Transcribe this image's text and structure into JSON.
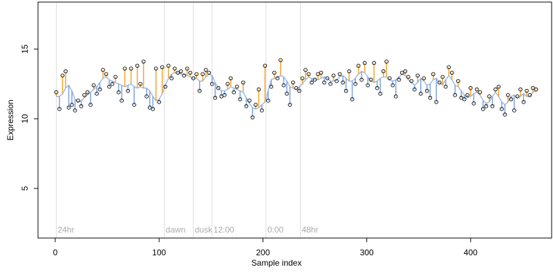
{
  "chart_data": {
    "type": "scatter",
    "xlabel": "Sample index",
    "ylabel": "Expression",
    "xlim": [
      -16.6,
      478
    ],
    "ylim": [
      1.44,
      18.37
    ],
    "xticks": [
      0,
      100,
      200,
      300,
      400
    ],
    "yticks": [
      5,
      10,
      15
    ],
    "above_color": "#f5a32a",
    "below_color": "#7aa3e0",
    "point_color": "#000000",
    "x": [
      1,
      4,
      7,
      10,
      13,
      16,
      19,
      22,
      25,
      28,
      31,
      34,
      37,
      40,
      43,
      46,
      49,
      52,
      55,
      58,
      61,
      64,
      67,
      70,
      73,
      76,
      79,
      82,
      85,
      88,
      91,
      94,
      97,
      100,
      103,
      106,
      109,
      112,
      115,
      118,
      121,
      124,
      127,
      130,
      133,
      136,
      139,
      142,
      145,
      148,
      151,
      154,
      157,
      160,
      163,
      166,
      169,
      172,
      175,
      178,
      181,
      184,
      187,
      190,
      193,
      196,
      199,
      202,
      205,
      208,
      211,
      214,
      217,
      220,
      223,
      226,
      229,
      232,
      235,
      238,
      241,
      244,
      247,
      250,
      253,
      256,
      259,
      262,
      265,
      268,
      271,
      274,
      277,
      280,
      283,
      286,
      289,
      292,
      295,
      298,
      301,
      304,
      307,
      310,
      313,
      316,
      319,
      322,
      325,
      328,
      331,
      334,
      337,
      340,
      343,
      346,
      349,
      352,
      355,
      358,
      361,
      364,
      367,
      370,
      373,
      376,
      379,
      382,
      385,
      388,
      391,
      394,
      397,
      400,
      403,
      406,
      409,
      412,
      415,
      418,
      421,
      424,
      427,
      430,
      433,
      436,
      439,
      442,
      445,
      448,
      451,
      454,
      457,
      460,
      463
    ],
    "values": [
      11.9,
      10.7,
      13.1,
      13.4,
      10.8,
      11.0,
      10.6,
      11.3,
      10.9,
      11.7,
      11.9,
      11.0,
      12.4,
      11.8,
      12.1,
      13.5,
      13.2,
      12.3,
      12.5,
      13.0,
      11.9,
      11.3,
      13.6,
      12.0,
      13.6,
      11.0,
      13.8,
      12.5,
      14.1,
      11.6,
      10.8,
      10.7,
      13.6,
      11.2,
      13.7,
      12.3,
      13.8,
      12.9,
      13.6,
      13.3,
      13.4,
      13.1,
      13.6,
      13.3,
      12.9,
      13.2,
      12.0,
      13.2,
      13.5,
      13.3,
      12.5,
      11.5,
      12.2,
      11.6,
      11.7,
      12.5,
      12.9,
      11.9,
      12.3,
      11.4,
      12.6,
      10.9,
      11.3,
      10.1,
      11.0,
      12.1,
      10.6,
      13.8,
      11.3,
      12.3,
      13.3,
      12.9,
      14.2,
      12.4,
      11.8,
      11.0,
      12.6,
      12.2,
      12.0,
      12.9,
      13.5,
      13.2,
      12.6,
      12.8,
      13.2,
      13.3,
      12.6,
      12.9,
      12.5,
      13.1,
      12.7,
      13.2,
      12.6,
      12.0,
      13.4,
      11.4,
      12.5,
      13.8,
      12.8,
      14.0,
      12.4,
      12.8,
      14.0,
      12.2,
      11.8,
      13.4,
      14.1,
      12.9,
      12.4,
      11.6,
      12.8,
      13.3,
      13.4,
      13.0,
      12.7,
      12.1,
      13.1,
      11.8,
      12.9,
      12.0,
      11.5,
      13.2,
      11.2,
      12.6,
      13.0,
      12.3,
      13.7,
      13.3,
      11.7,
      12.7,
      11.5,
      11.4,
      11.7,
      12.2,
      11.1,
      12.1,
      11.9,
      10.7,
      10.9,
      11.6,
      10.9,
      12.1,
      12.3,
      10.7,
      10.3,
      11.7,
      11.4,
      10.6,
      11.6,
      12.1,
      11.2,
      12.0,
      11.7,
      12.2,
      12.1
    ],
    "fit": {
      "color": "#9dbbe6",
      "values": [
        11.6,
        11.6,
        11.8,
        12.2,
        12.4,
        12.0,
        11.4,
        11.2,
        11.3,
        11.5,
        11.7,
        11.9,
        12.1,
        12.3,
        12.6,
        12.9,
        13.0,
        12.8,
        12.7,
        12.6,
        12.5,
        12.4,
        12.3,
        12.4,
        12.5,
        12.3,
        12.2,
        12.3,
        12.2,
        12.2,
        12.0,
        11.6,
        11.3,
        11.4,
        11.8,
        12.4,
        12.9,
        13.2,
        13.3,
        13.3,
        13.2,
        13.2,
        13.1,
        13.0,
        12.9,
        12.9,
        12.7,
        12.7,
        13.0,
        13.2,
        13.1,
        12.6,
        12.2,
        12.0,
        12.0,
        12.1,
        12.3,
        12.2,
        12.1,
        12.0,
        11.9,
        11.5,
        11.1,
        10.8,
        10.7,
        10.8,
        11.0,
        11.2,
        12.0,
        12.8,
        12.9,
        13.0,
        13.1,
        13.0,
        12.7,
        12.3,
        12.2,
        12.1,
        12.3,
        12.5,
        12.8,
        13.0,
        12.9,
        12.8,
        12.8,
        12.9,
        13.0,
        12.9,
        12.7,
        12.7,
        12.8,
        13.0,
        13.1,
        12.9,
        12.7,
        12.7,
        12.9,
        13.2,
        13.4,
        13.3,
        13.0,
        12.7,
        12.6,
        12.7,
        12.9,
        13.0,
        13.0,
        12.8,
        12.7,
        12.8,
        13.0,
        13.2,
        13.1,
        12.8,
        12.6,
        12.4,
        12.6,
        12.9,
        12.7,
        12.4,
        12.5,
        12.8,
        12.9,
        12.6,
        12.4,
        12.8,
        13.1,
        12.8,
        12.4,
        12.3,
        12.0,
        11.7,
        11.5,
        11.6,
        11.8,
        11.9,
        11.7,
        11.3,
        11.1,
        11.2,
        11.6,
        11.9,
        11.6,
        11.2,
        11.0,
        11.2,
        11.6,
        11.7,
        11.5,
        11.6,
        11.8,
        11.6,
        11.6,
        11.9,
        12.0
      ]
    },
    "events": [
      {
        "x": 1,
        "label": "24hr"
      },
      {
        "x": 105,
        "label": "dawn"
      },
      {
        "x": 133,
        "label": "dusk"
      },
      {
        "x": 151,
        "label": "12:00"
      },
      {
        "x": 203,
        "label": "0:00"
      },
      {
        "x": 236,
        "label": "48hr"
      }
    ],
    "event_color": "#dddddd"
  }
}
